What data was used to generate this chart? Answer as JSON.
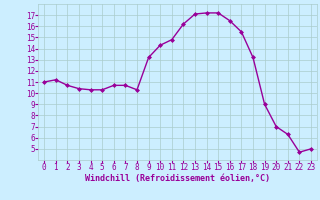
{
  "x": [
    0,
    1,
    2,
    3,
    4,
    5,
    6,
    7,
    8,
    9,
    10,
    11,
    12,
    13,
    14,
    15,
    16,
    17,
    18,
    19,
    20,
    21,
    22,
    23
  ],
  "y": [
    11.0,
    11.2,
    10.7,
    10.4,
    10.3,
    10.3,
    10.7,
    10.7,
    10.3,
    13.2,
    14.3,
    14.8,
    16.2,
    17.1,
    17.2,
    17.2,
    16.5,
    15.5,
    13.2,
    9.0,
    7.0,
    6.3,
    4.7,
    5.0
  ],
  "line_color": "#990099",
  "marker": "D",
  "marker_size": 2.0,
  "line_width": 1.0,
  "bg_color": "#cceeff",
  "grid_color": "#aacccc",
  "xlabel": "Windchill (Refroidissement éolien,°C)",
  "xlabel_color": "#990099",
  "xlabel_fontsize": 6.0,
  "tick_color": "#990099",
  "tick_fontsize": 5.5,
  "xlim": [
    -0.5,
    23.5
  ],
  "ylim": [
    4,
    18
  ],
  "yticks": [
    5,
    6,
    7,
    8,
    9,
    10,
    11,
    12,
    13,
    14,
    15,
    16,
    17
  ],
  "xticks": [
    0,
    1,
    2,
    3,
    4,
    5,
    6,
    7,
    8,
    9,
    10,
    11,
    12,
    13,
    14,
    15,
    16,
    17,
    18,
    19,
    20,
    21,
    22,
    23
  ]
}
